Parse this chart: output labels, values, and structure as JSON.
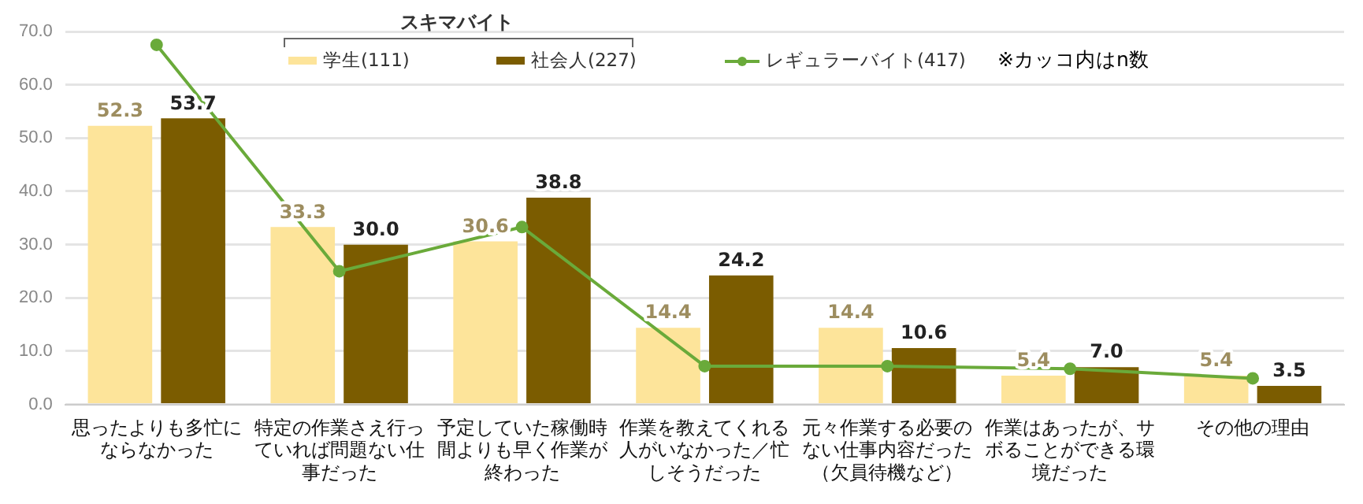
{
  "chart_data": {
    "type": "bar",
    "categories": [
      "思ったよりも多忙にならなかった",
      "特定の作業さえ行っていれば問題ない仕事だった",
      "予定していた稼働時間よりも早く作業が終わった",
      "作業を教えてくれる人がいなかった／忙しそうだった",
      "元々作業する必要のない仕事内容だった（欠員待機など）",
      "作業はあったが、サボることができる環境だった",
      "その他の理由"
    ],
    "series": [
      {
        "name": "学生(111)",
        "color": "#fde49a",
        "values": [
          52.3,
          33.3,
          30.6,
          14.4,
          14.4,
          5.4,
          5.4
        ],
        "value_labels": [
          "52.3",
          "33.3",
          "30.6",
          "14.4",
          "14.4",
          "5.4",
          "5.4"
        ]
      },
      {
        "name": "社会人(227)",
        "color": "#7b5c00",
        "values": [
          53.7,
          30.0,
          38.8,
          24.2,
          10.6,
          7.0,
          3.5
        ],
        "value_labels": [
          "53.7",
          "30.0",
          "38.8",
          "24.2",
          "10.6",
          "7.0",
          "3.5"
        ]
      },
      {
        "name": "レギュラーバイト(417)",
        "type": "line",
        "color": "#6aaa3a",
        "values": [
          67.5,
          25.0,
          33.3,
          7.2,
          7.2,
          6.7,
          4.9
        ],
        "marker": "circle"
      }
    ],
    "legend_title": "スキマバイト",
    "legend": "top",
    "annotations": [
      "※カッコ内はn数"
    ],
    "ylim": [
      0,
      70
    ],
    "yticks": [
      {
        "value": 0,
        "label": "0.0"
      },
      {
        "value": 10,
        "label": "10.0"
      },
      {
        "value": 20,
        "label": "20.0"
      },
      {
        "value": 30,
        "label": "30.0"
      },
      {
        "value": 40,
        "label": "40.0"
      },
      {
        "value": 50,
        "label": "50.0"
      },
      {
        "value": 60,
        "label": "60.0"
      },
      {
        "value": 70,
        "label": "70.0"
      }
    ],
    "grid": "y"
  }
}
